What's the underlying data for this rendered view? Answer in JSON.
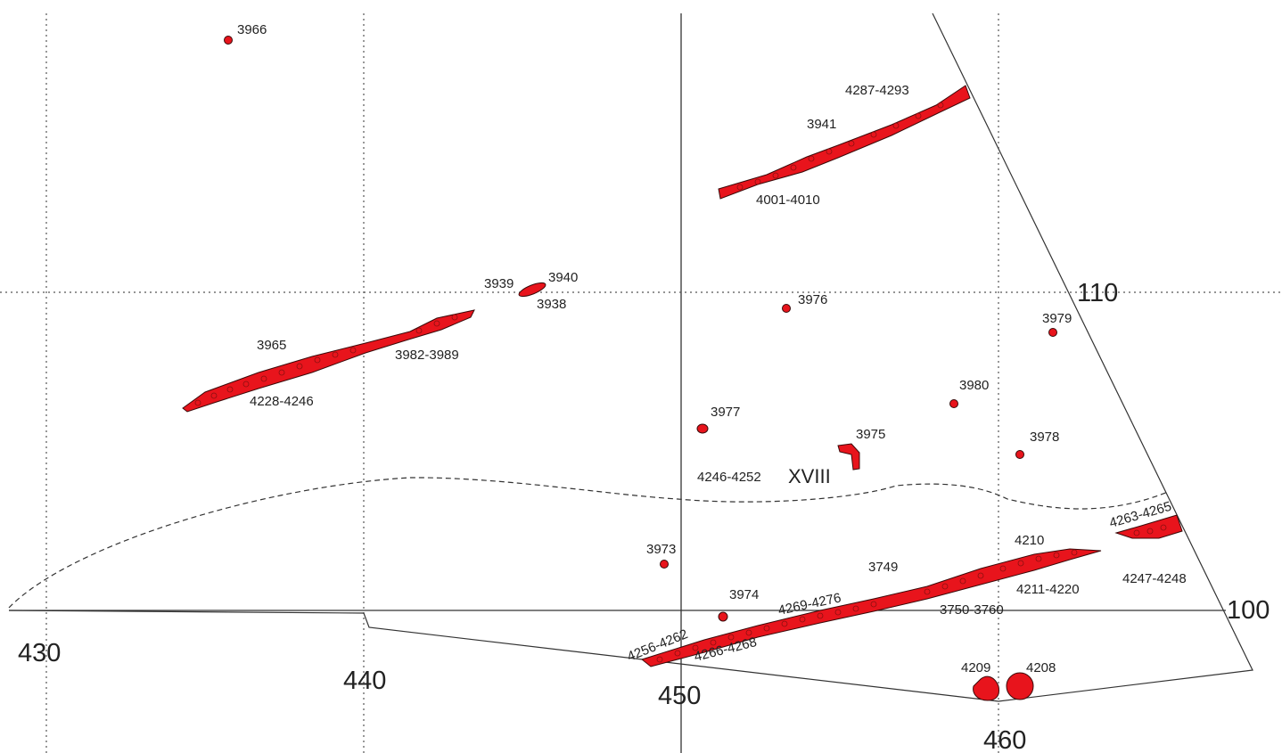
{
  "axes": {
    "x_labels": [
      "430",
      "440",
      "450",
      "460"
    ],
    "y_labels": [
      "110",
      "100"
    ],
    "zone": "XVIII"
  },
  "labels": {
    "l3966": "3966",
    "l4287": "4287-4293",
    "l3941": "3941",
    "l4001": "4001-4010",
    "l3939": "3939",
    "l3940": "3940",
    "l3938": "3938",
    "l3976": "3976",
    "l3979": "3979",
    "l3965": "3965",
    "l3982": "3982-3989",
    "l4228": "4228-4246",
    "l3980": "3980",
    "l3977": "3977",
    "l3975": "3975",
    "l3978": "3978",
    "l4246": "4246-4252",
    "l4263": "4263-4265",
    "l3973": "3973",
    "l4210": "4210",
    "l3749": "3749",
    "l4247": "4247-4248",
    "l4211": "4211-4220",
    "l3974": "3974",
    "l4269": "4269-4276",
    "l3750": "3750-3760",
    "l4256": "4256-4262",
    "l4266": "4266-4268",
    "l4209": "4209",
    "l4208": "4208"
  },
  "colors": {
    "feature_fill": "#e8141c",
    "line": "#333333"
  }
}
